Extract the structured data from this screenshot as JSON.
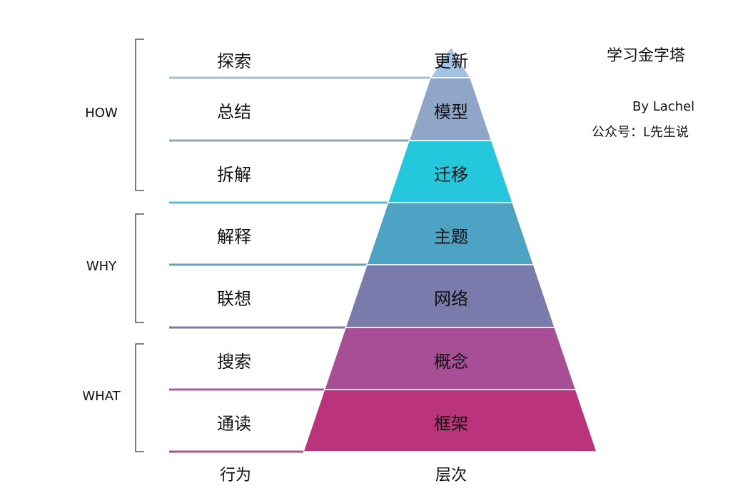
{
  "title": "学习金字塔",
  "author": "By Lachel",
  "account": "公众号：L先生说",
  "footer": {
    "behavior_label": "行为",
    "level_label": "层次"
  },
  "groups": [
    {
      "label": "HOW",
      "rows": [
        0,
        2
      ]
    },
    {
      "label": "WHY",
      "rows": [
        3,
        4
      ]
    },
    {
      "label": "WHAT",
      "rows": [
        5,
        6
      ]
    }
  ],
  "layers": [
    {
      "behavior": "探索",
      "level": "更新",
      "color": "#a4c3e4",
      "line_color": "#9cc0d4"
    },
    {
      "behavior": "总结",
      "level": "模型",
      "color": "#8fa6c8",
      "line_color": "#90a4b4"
    },
    {
      "behavior": "拆解",
      "level": "迁移",
      "color": "#24c7dc",
      "line_color": "#52c0d4"
    },
    {
      "behavior": "解释",
      "level": "主题",
      "color": "#4ea2c4",
      "line_color": "#6aa0b4"
    },
    {
      "behavior": "联想",
      "level": "网络",
      "color": "#7b7aac",
      "line_color": "#7a7aa4"
    },
    {
      "behavior": "搜索",
      "level": "概念",
      "color": "#a84e96",
      "line_color": "#a0609c"
    },
    {
      "behavior": "通读",
      "level": "框架",
      "color": "#bb337b",
      "line_color": "#b84c88"
    }
  ]
}
